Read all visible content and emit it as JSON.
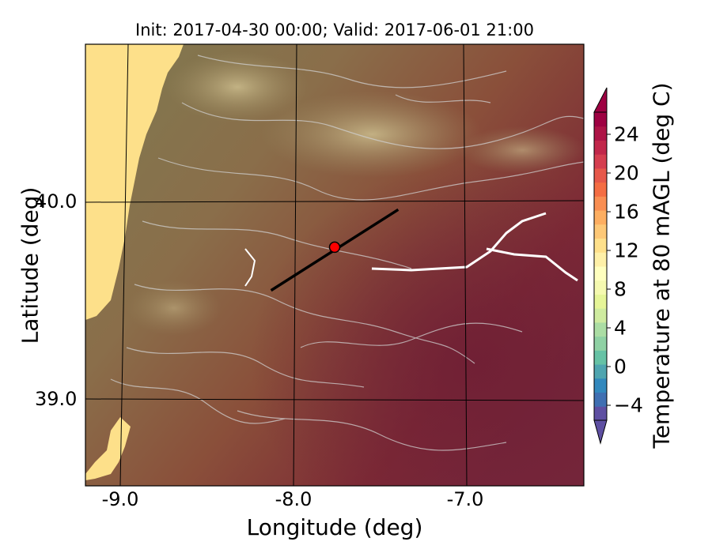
{
  "title": "Init: 2017-04-30 00:00; Valid: 2017-06-01 21:00",
  "axes": {
    "xlabel": "Longitude (deg)",
    "ylabel": "Latitude (deg)",
    "xticks": [
      "-9.0",
      "-8.0",
      "-7.0"
    ],
    "yticks": [
      "40.0",
      "39.0"
    ],
    "xlim": [
      -9.2,
      -6.3
    ],
    "ylim": [
      38.45,
      40.8
    ],
    "grid": true
  },
  "colorbar": {
    "label": "Temperature at 80 mAGL (deg C)",
    "ticks": [
      "24",
      "20",
      "16",
      "12",
      "8",
      "4",
      "0",
      "−4"
    ],
    "range": [
      -6,
      28
    ],
    "extend": "both",
    "colormap": "Spectral_r"
  },
  "map_content": {
    "location_marker": {
      "lon": -7.75,
      "lat": 39.72,
      "color": "#ff0000"
    },
    "cross_section_line": {
      "start": [
        -8.12,
        39.49
      ],
      "end": [
        -7.38,
        39.92
      ],
      "color": "#000000"
    },
    "ocean_color": "#fde08a",
    "cool_terrain_color": "#7f7a50",
    "warm_terrain_color": "#7d2a35",
    "contour_color": "#cfcfcf"
  }
}
